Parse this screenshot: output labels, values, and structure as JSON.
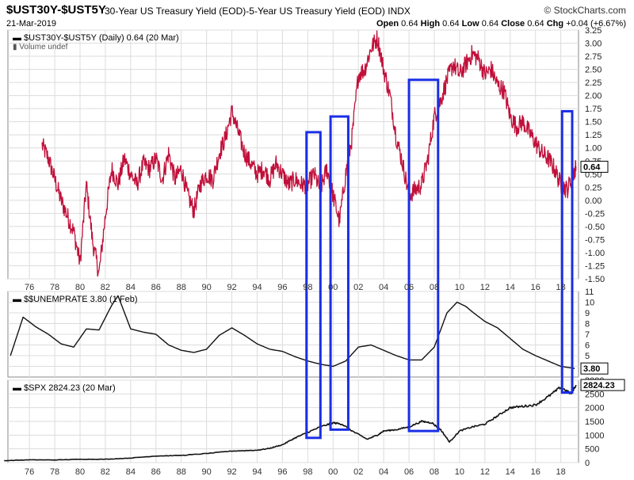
{
  "header": {
    "symbol": "$UST30Y-$UST5Y",
    "description": "30-Year US Treasury Yield (EOD)-5-Year US Treasury Yield (EOD) INDX",
    "date": "21-Mar-2019",
    "logo": "© StockCharts.com",
    "ohlc": {
      "open_label": "Open",
      "open": "0.64",
      "high_label": "High",
      "high": "0.64",
      "low_label": "Low",
      "low": "0.64",
      "close_label": "Close",
      "close": "0.64",
      "chg_label": "Chg",
      "chg": "+0.04 (+6.67%)"
    }
  },
  "colors": {
    "spread": "#c0103a",
    "line": "#111111",
    "highlight": "#1b2ee6",
    "grid": "#dcdcdc"
  },
  "chart_data": [
    {
      "type": "line",
      "title": "$UST30Y-$UST5Y (Daily) 0.64 (20 Mar)",
      "legend_secondary": "Volume undef",
      "last_value_label": "0.64",
      "ylim": [
        -1.5,
        3.25
      ],
      "yticks": [
        "3.25",
        "3.00",
        "2.75",
        "2.50",
        "2.25",
        "2.00",
        "1.75",
        "1.50",
        "1.25",
        "1.00",
        "0.75",
        "0.50",
        "0.25",
        "0.00",
        "-0.25",
        "-0.50",
        "-0.75",
        "-1.00",
        "-1.25",
        "-1.50"
      ],
      "x": [
        1977.0,
        1977.5,
        1978.0,
        1978.5,
        1979.0,
        1979.5,
        1980.0,
        1980.5,
        1981.0,
        1981.5,
        1982.0,
        1982.5,
        1983.0,
        1983.5,
        1984.0,
        1984.5,
        1985.0,
        1985.5,
        1986.0,
        1986.5,
        1987.0,
        1987.5,
        1988.0,
        1988.5,
        1989.0,
        1989.5,
        1990.0,
        1990.5,
        1991.0,
        1991.5,
        1992.0,
        1992.5,
        1993.0,
        1993.5,
        1994.0,
        1994.5,
        1995.0,
        1995.5,
        1996.0,
        1996.5,
        1997.0,
        1997.5,
        1998.0,
        1998.5,
        1999.0,
        1999.5,
        2000.0,
        2000.5,
        2001.0,
        2001.5,
        2002.0,
        2002.5,
        2003.0,
        2003.5,
        2004.0,
        2004.5,
        2005.0,
        2005.5,
        2006.0,
        2006.5,
        2007.0,
        2007.5,
        2008.0,
        2008.5,
        2009.0,
        2009.5,
        2010.0,
        2010.5,
        2011.0,
        2011.5,
        2012.0,
        2012.5,
        2013.0,
        2013.5,
        2014.0,
        2014.5,
        2015.0,
        2015.5,
        2016.0,
        2016.5,
        2017.0,
        2017.5,
        2018.0,
        2018.5,
        2019.0,
        2019.2
      ],
      "values": [
        1.05,
        0.8,
        0.4,
        0.0,
        -0.3,
        -0.6,
        -1.2,
        0.3,
        -0.8,
        -1.4,
        -0.3,
        0.6,
        0.3,
        0.8,
        0.5,
        0.3,
        0.7,
        0.6,
        0.8,
        0.4,
        0.9,
        0.4,
        0.6,
        0.1,
        -0.2,
        0.3,
        0.5,
        0.4,
        0.9,
        1.2,
        1.7,
        1.3,
        0.9,
        0.7,
        0.5,
        0.6,
        0.4,
        0.7,
        0.5,
        0.3,
        0.4,
        0.3,
        0.3,
        0.5,
        0.2,
        0.6,
        0.1,
        -0.4,
        0.5,
        1.2,
        2.4,
        2.5,
        2.9,
        3.1,
        2.5,
        2.0,
        1.2,
        0.7,
        0.1,
        0.2,
        0.3,
        0.8,
        1.6,
        1.9,
        2.3,
        2.6,
        2.4,
        2.6,
        2.8,
        2.7,
        2.4,
        2.5,
        2.2,
        2.1,
        1.6,
        1.4,
        1.5,
        1.3,
        1.1,
        0.9,
        0.8,
        0.6,
        0.3,
        0.2,
        0.5,
        0.64
      ]
    },
    {
      "type": "line",
      "title": "$$UNEMPRATE 3.80 (1 Feb)",
      "last_value_label": "3.80",
      "ylim": [
        3,
        11
      ],
      "yticks": [
        "11",
        "10",
        "9",
        "8",
        "7",
        "6",
        "5",
        "4"
      ],
      "x": [
        1974.5,
        1975.5,
        1976.5,
        1977.5,
        1978.5,
        1979.5,
        1980.5,
        1981.5,
        1982.5,
        1983.0,
        1984,
        1985,
        1986,
        1987,
        1988,
        1989,
        1990,
        1991,
        1992,
        1993,
        1994,
        1995,
        1996,
        1997,
        1998,
        1999,
        2000,
        2001,
        2002,
        2003,
        2004,
        2005,
        2006,
        2007,
        2008,
        2009,
        2009.8,
        2010.5,
        2011,
        2012,
        2013,
        2014,
        2015,
        2016,
        2017,
        2018,
        2019.1
      ],
      "values": [
        5.0,
        8.6,
        7.7,
        7.0,
        6.1,
        5.8,
        7.5,
        7.4,
        9.7,
        10.6,
        7.5,
        7.2,
        7.0,
        6.0,
        5.5,
        5.3,
        5.6,
        6.9,
        7.6,
        6.9,
        6.1,
        5.6,
        5.4,
        4.9,
        4.5,
        4.2,
        4.0,
        4.5,
        5.8,
        6.0,
        5.5,
        5.0,
        4.6,
        4.6,
        5.8,
        9.0,
        10.0,
        9.6,
        9.1,
        8.2,
        7.6,
        6.6,
        5.6,
        5.0,
        4.5,
        4.0,
        3.8
      ]
    },
    {
      "type": "line",
      "title": "$SPX 2824.23 (20 Mar)",
      "last_value_label": "2824.23",
      "ylim": [
        0,
        3000
      ],
      "yticks": [
        "3000",
        "2500",
        "2000",
        "1500",
        "1000",
        "500",
        "0"
      ],
      "xlabels": [
        "76",
        "78",
        "80",
        "82",
        "84",
        "86",
        "88",
        "90",
        "92",
        "94",
        "96",
        "98",
        "00",
        "02",
        "04",
        "06",
        "08",
        "10",
        "12",
        "14",
        "16",
        "18"
      ],
      "x": [
        1974,
        1976,
        1978,
        1980,
        1982,
        1984,
        1986,
        1988,
        1990,
        1992,
        1994,
        1995,
        1996,
        1997,
        1998,
        1999,
        2000,
        2000.7,
        2001.5,
        2002.7,
        2003.5,
        2004,
        2005,
        2006,
        2007,
        2007.8,
        2008.5,
        2009.2,
        2010,
        2011,
        2012,
        2013,
        2014,
        2015,
        2016,
        2017,
        2018,
        2018.8,
        2019.2
      ],
      "values": [
        70,
        100,
        95,
        120,
        120,
        165,
        240,
        260,
        330,
        420,
        450,
        520,
        650,
        900,
        1100,
        1300,
        1450,
        1400,
        1150,
        850,
        1000,
        1150,
        1200,
        1300,
        1500,
        1450,
        1200,
        750,
        1150,
        1300,
        1400,
        1700,
        2000,
        2050,
        2100,
        2400,
        2750,
        2500,
        2824
      ]
    }
  ],
  "highlight_ranges": [
    {
      "start": 1997.9,
      "end": 1999.0,
      "top_value": 1.3,
      "bottom_value": 900
    },
    {
      "start": 1999.8,
      "end": 2001.2,
      "top_value": 1.6,
      "bottom_value": 1200
    },
    {
      "start": 2006.0,
      "end": 2008.3,
      "top_value": 2.3,
      "bottom_value": 1150
    },
    {
      "start": 2018.1,
      "end": 2018.9,
      "top_value": 1.7,
      "bottom_value": 2550
    }
  ]
}
